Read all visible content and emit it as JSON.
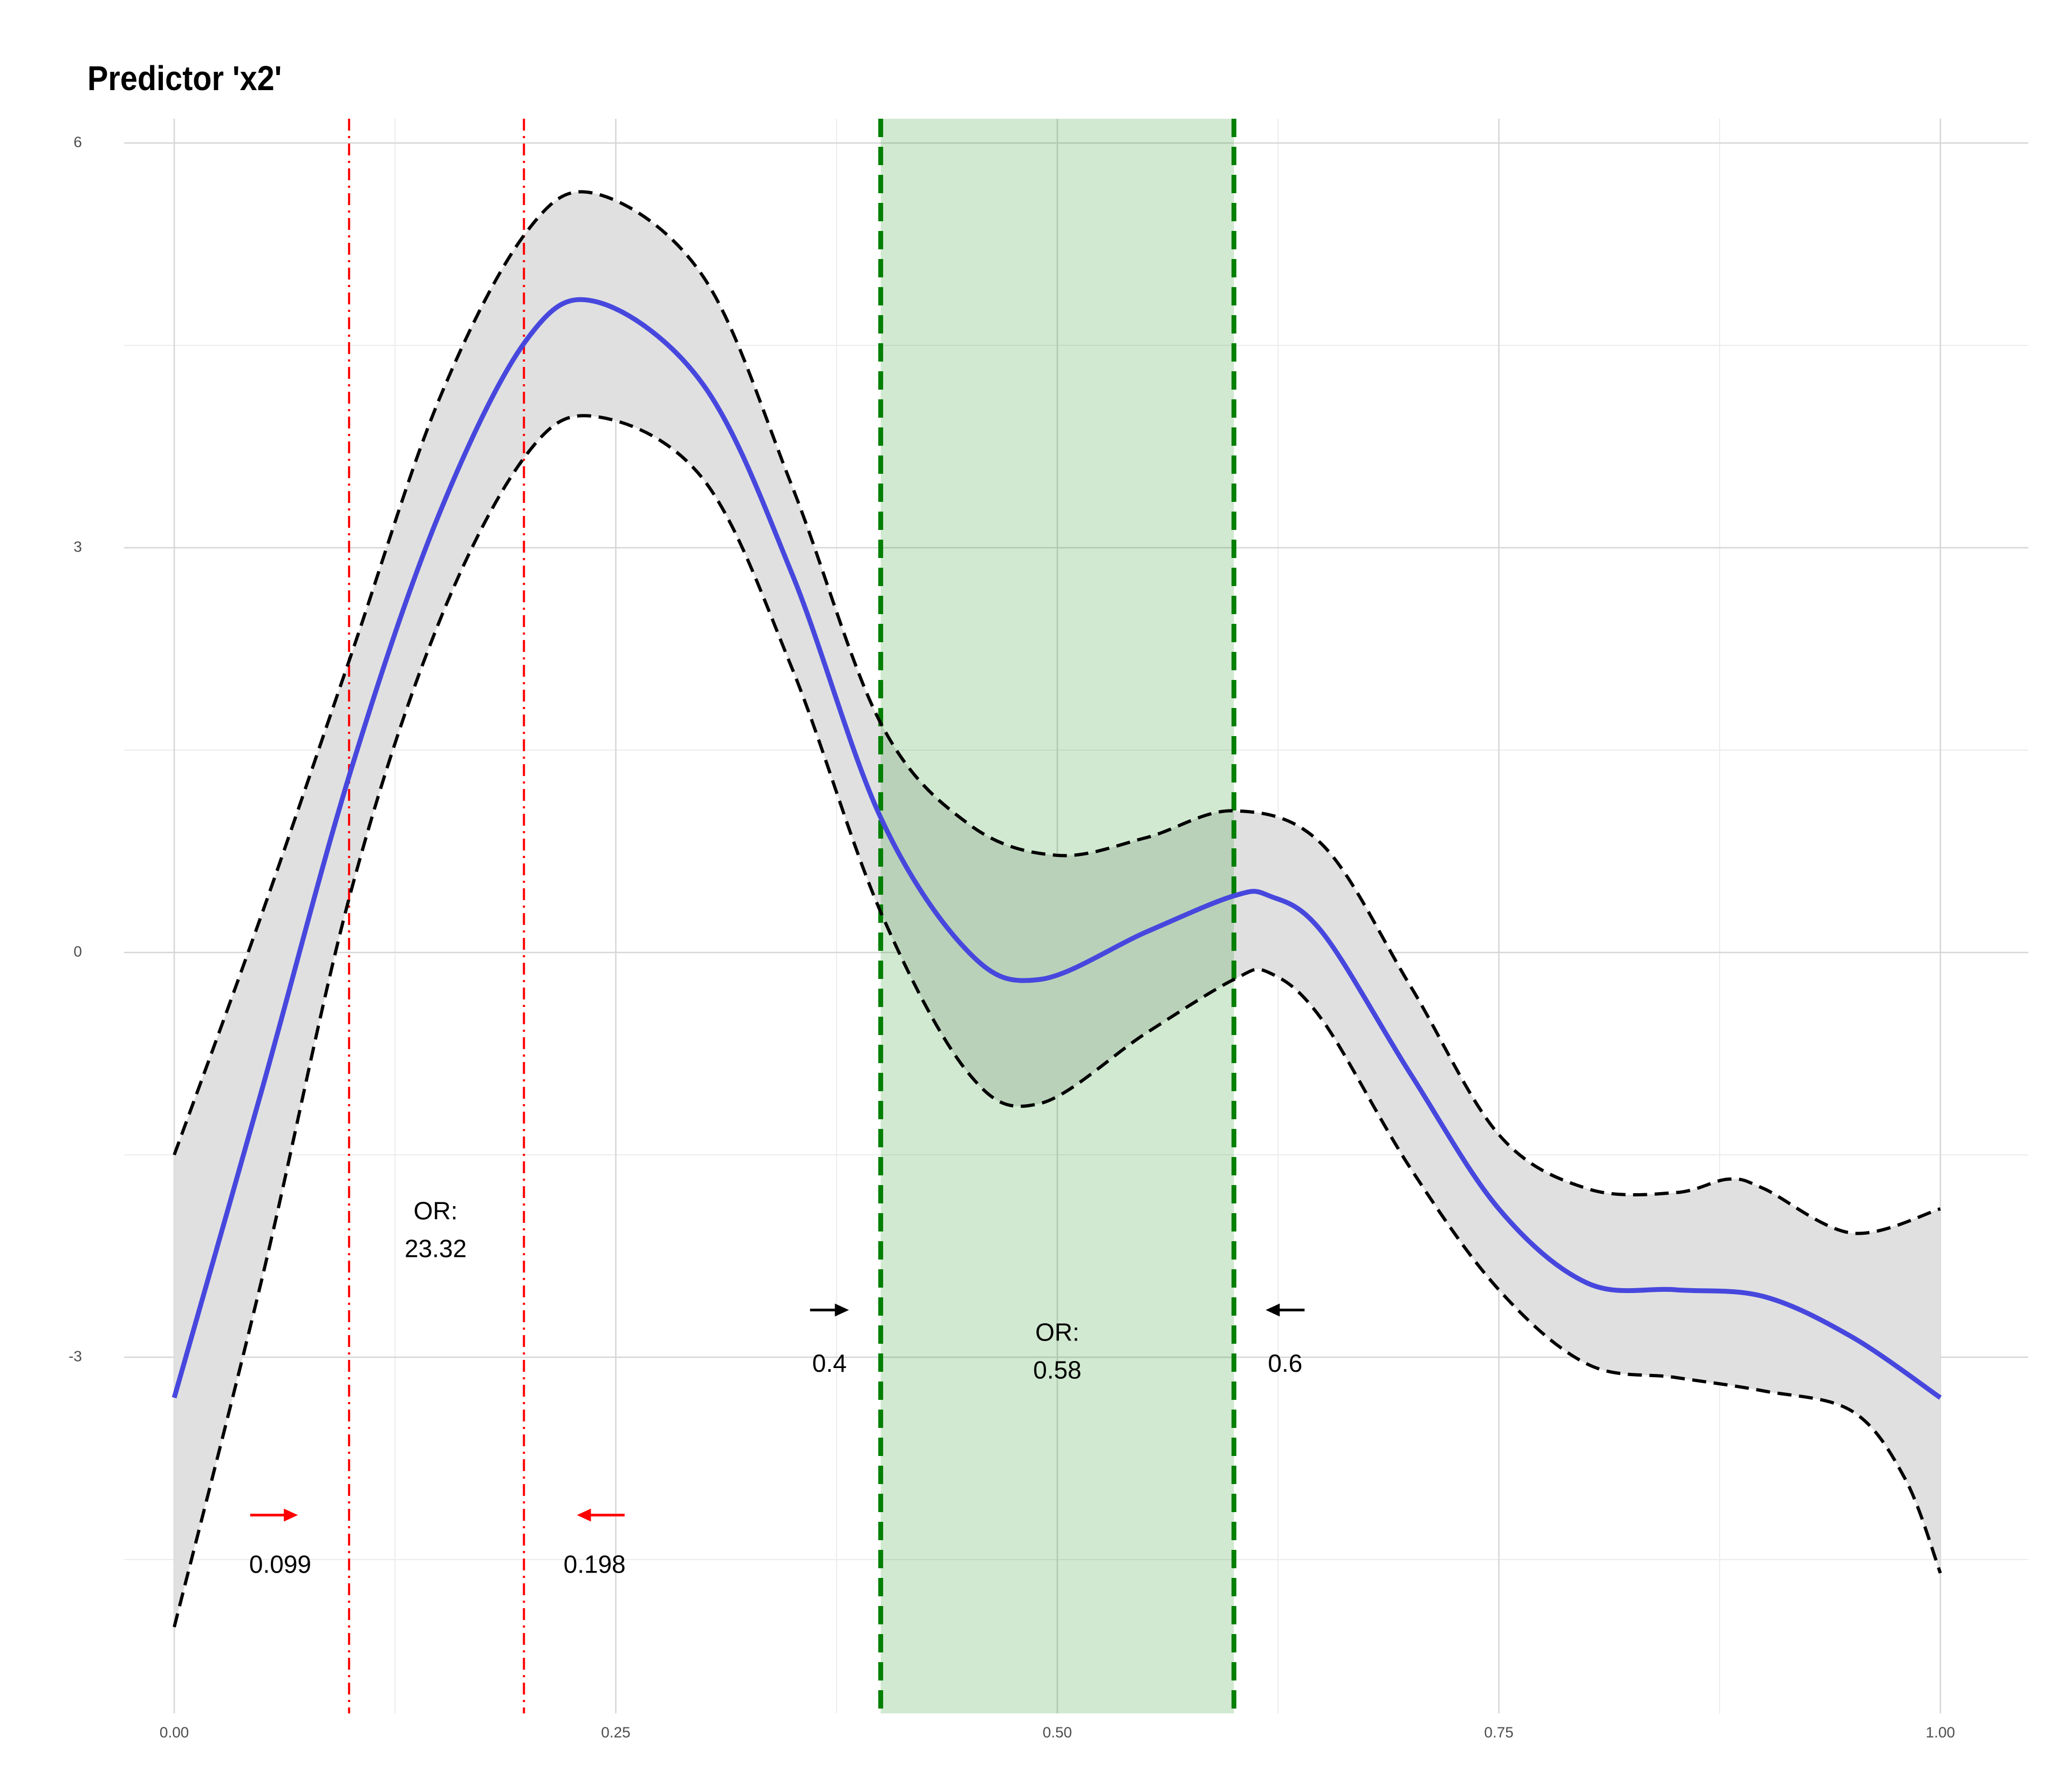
{
  "chart_data": {
    "type": "line",
    "title": "Predictor 'x2'",
    "xlabel": "",
    "ylabel": "",
    "xlim": [
      0,
      1
    ],
    "ylim": [
      -5.65,
      6.15
    ],
    "x_ticks": [
      {
        "value": 0.0,
        "label": "0.00"
      },
      {
        "value": 0.25,
        "label": "0.25"
      },
      {
        "value": 0.5,
        "label": "0.50"
      },
      {
        "value": 0.75,
        "label": "0.75"
      },
      {
        "value": 1.0,
        "label": "1.00"
      }
    ],
    "y_ticks": [
      {
        "value": 6,
        "label": "6"
      },
      {
        "value": 3,
        "label": "3"
      },
      {
        "value": 0,
        "label": "0"
      },
      {
        "value": -3,
        "label": "-3"
      }
    ],
    "x_minor_gridlines": [
      0.125,
      0.375,
      0.625,
      0.875
    ],
    "y_minor_gridlines": [
      4.5,
      1.5,
      -1.5,
      -4.5
    ],
    "grid": true,
    "series": [
      {
        "role": "estimate",
        "color": "#4747DE",
        "x": [
          0.0,
          0.05,
          0.1,
          0.15,
          0.2,
          0.24,
          0.3,
          0.35,
          0.4,
          0.45,
          0.49,
          0.55,
          0.6,
          0.62,
          0.65,
          0.7,
          0.75,
          0.8,
          0.85,
          0.9,
          0.95,
          1.0
        ],
        "values": [
          -3.3,
          -1.0,
          1.35,
          3.25,
          4.55,
          4.82,
          4.2,
          2.8,
          1.0,
          0.0,
          -0.2,
          0.15,
          0.42,
          0.42,
          0.15,
          -0.9,
          -1.9,
          -2.45,
          -2.5,
          -2.55,
          -2.85,
          -3.3
        ]
      },
      {
        "role": "upper-ci",
        "color": "#000000",
        "x": [
          0.0,
          0.05,
          0.1,
          0.15,
          0.2,
          0.24,
          0.3,
          0.35,
          0.4,
          0.45,
          0.5,
          0.55,
          0.6,
          0.65,
          0.7,
          0.75,
          0.8,
          0.85,
          0.88,
          0.9,
          0.95,
          1.0
        ],
        "values": [
          -1.5,
          0.3,
          2.2,
          4.1,
          5.35,
          5.62,
          5.0,
          3.45,
          1.7,
          0.95,
          0.72,
          0.85,
          1.05,
          0.8,
          -0.25,
          -1.35,
          -1.75,
          -1.78,
          -1.68,
          -1.75,
          -2.08,
          -1.9
        ]
      },
      {
        "role": "lower-ci",
        "color": "#000000",
        "x": [
          0.0,
          0.05,
          0.1,
          0.15,
          0.2,
          0.24,
          0.3,
          0.35,
          0.4,
          0.45,
          0.49,
          0.55,
          0.6,
          0.62,
          0.65,
          0.7,
          0.75,
          0.8,
          0.85,
          0.9,
          0.95,
          0.98,
          1.0
        ],
        "values": [
          -5.0,
          -2.4,
          0.45,
          2.45,
          3.7,
          3.97,
          3.5,
          2.1,
          0.3,
          -0.9,
          -1.12,
          -0.6,
          -0.2,
          -0.15,
          -0.5,
          -1.6,
          -2.5,
          -3.05,
          -3.15,
          -3.25,
          -3.4,
          -3.9,
          -4.6
        ]
      }
    ],
    "reference_lines": [
      {
        "x": 0.099,
        "color": "#FF0000",
        "style": "dashdot"
      },
      {
        "x": 0.198,
        "color": "#FF0000",
        "style": "dashdot"
      },
      {
        "x": 0.4,
        "color": "#007F00",
        "style": "dashed"
      },
      {
        "x": 0.6,
        "color": "#007F00",
        "style": "dashed"
      }
    ],
    "shaded_region": {
      "x0": 0.4,
      "x1": 0.6,
      "color": "#CFE5CF"
    },
    "annotations": [
      {
        "id": "or-red-1",
        "text": "OR:",
        "x": 0.148,
        "y": -1.93
      },
      {
        "id": "or-red-2",
        "text": "23.32",
        "x": 0.148,
        "y": -2.21
      },
      {
        "id": "or-green-1",
        "text": "OR:",
        "x": 0.5,
        "y": -2.83
      },
      {
        "id": "or-green-2",
        "text": "0.58",
        "x": 0.5,
        "y": -3.11
      },
      {
        "id": "lbl-0.4",
        "text": "0.4",
        "x": 0.371,
        "y": -3.06
      },
      {
        "id": "lbl-0.6",
        "text": "0.6",
        "x": 0.629,
        "y": -3.06
      },
      {
        "id": "lbl-0.099",
        "text": "0.099",
        "x": 0.06,
        "y": -4.55
      },
      {
        "id": "lbl-0.198",
        "text": "0.198",
        "x": 0.238,
        "y": -4.55
      }
    ],
    "arrows": [
      {
        "id": "arrow-right-black",
        "x_from": 0.36,
        "x_to": 0.382,
        "y": -2.65,
        "color": "#000000"
      },
      {
        "id": "arrow-left-black",
        "x_from": 0.64,
        "x_to": 0.618,
        "y": -2.65,
        "color": "#000000"
      },
      {
        "id": "arrow-right-red",
        "x_from": 0.043,
        "x_to": 0.07,
        "y": -4.17,
        "color": "#FF0000"
      },
      {
        "id": "arrow-left-red",
        "x_from": 0.255,
        "x_to": 0.228,
        "y": -4.17,
        "color": "#FF0000"
      }
    ]
  }
}
